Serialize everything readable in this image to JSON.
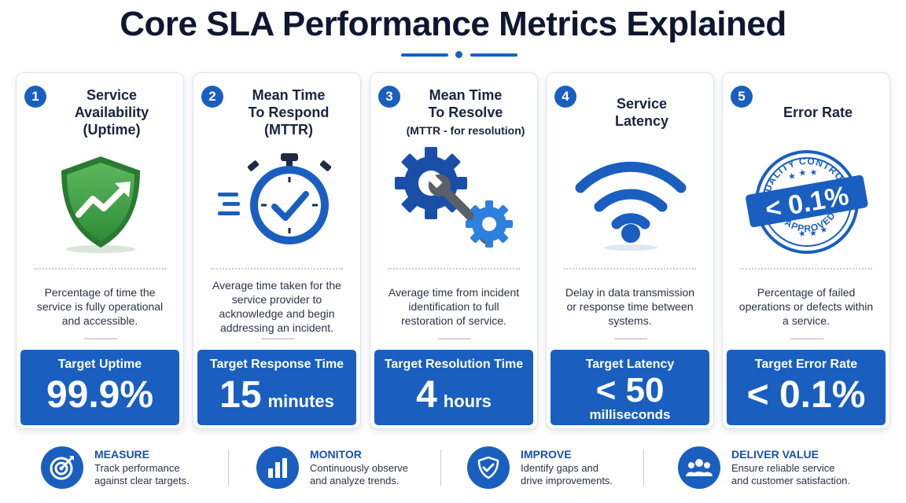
{
  "header": {
    "title": "Core SLA Performance Metrics Explained"
  },
  "colors": {
    "primary": "#1a5fbf",
    "shield_green": "#3a9a3a",
    "icon_gray": "#5a5f68"
  },
  "cards": [
    {
      "number": "1",
      "title_lines": [
        "Service",
        "Availability",
        "(Uptime)"
      ],
      "icon": "shield-trend-icon",
      "description": "Percentage of time the service is fully operational and accessible.",
      "target_label": "Target Uptime",
      "target_value": "99.9%",
      "target_unit": ""
    },
    {
      "number": "2",
      "title_lines": [
        "Mean Time",
        "To Respond",
        "(MTTR)"
      ],
      "icon": "stopwatch-icon",
      "description": "Average time taken for the service provider to acknowledge and begin addressing an incident.",
      "target_label": "Target Response Time",
      "target_value": "15",
      "target_unit": "minutes"
    },
    {
      "number": "3",
      "title_lines": [
        "Mean Time",
        "To Resolve"
      ],
      "title_sub": "(MTTR - for resolution)",
      "icon": "gears-wrench-icon",
      "description": "Average time from incident identification to full restoration of service.",
      "target_label": "Target Resolution Time",
      "target_value": "4",
      "target_unit": "hours"
    },
    {
      "number": "4",
      "title_lines": [
        "Service",
        "Latency"
      ],
      "icon": "wifi-icon",
      "description": "Delay in data transmission or response time between systems.",
      "target_label": "Target Latency",
      "target_value": "< 50",
      "target_unit": "milliseconds"
    },
    {
      "number": "5",
      "title_lines": [
        "Error Rate"
      ],
      "icon": "quality-stamp-icon",
      "stamp": {
        "top": "QUALITY CONTROL",
        "middle": "< 0.1%",
        "bottom": "APPROVED"
      },
      "description": "Percentage of failed operations or defects within a service.",
      "target_label": "Target Error Rate",
      "target_value": "< 0.1%",
      "target_unit": ""
    }
  ],
  "footer": [
    {
      "title": "MEASURE",
      "lines": [
        "Track performance",
        "against clear targets."
      ],
      "icon": "target-icon"
    },
    {
      "title": "MONITOR",
      "lines": [
        "Continuously observe",
        "and analyze trends."
      ],
      "icon": "bar-chart-icon"
    },
    {
      "title": "IMPROVE",
      "lines": [
        "Identify gaps and",
        "drive improvements."
      ],
      "icon": "shield-check-icon"
    },
    {
      "title": "DELIVER VALUE",
      "lines": [
        "Ensure reliable service",
        "and customer satisfaction."
      ],
      "icon": "people-icon"
    }
  ]
}
